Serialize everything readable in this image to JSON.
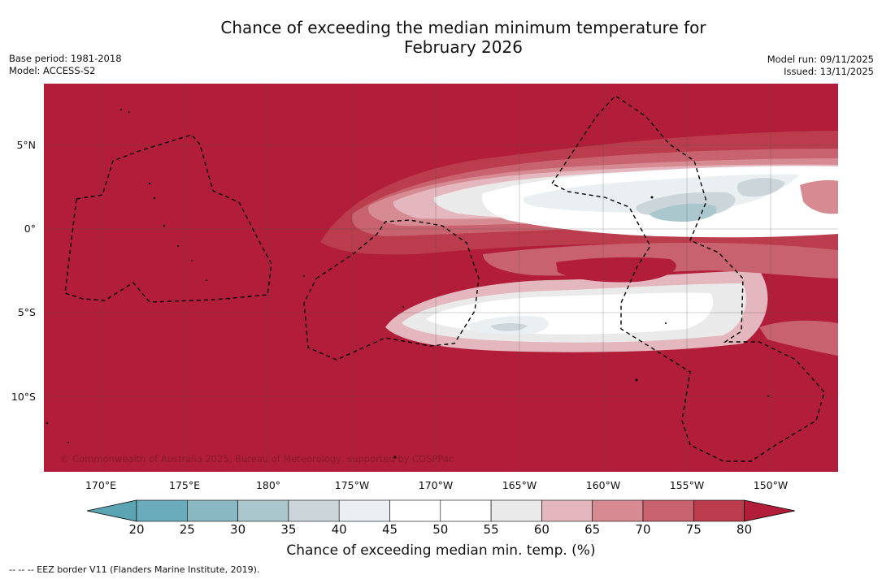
{
  "title_line1": "Chance of exceeding the median minimum temperature for",
  "title_line2": "February 2026",
  "base_period": "Base period: 1981-2018",
  "model": "Model: ACCESS-S2",
  "model_run": "Model run: 09/11/2025",
  "issued": "Issued: 13/11/2025",
  "copyright": "© Commonwealth of Australia 2025, Bureau of Meteorology, supported by COSPPac",
  "lat_labels": [
    "5°N",
    "0°",
    "5°S",
    "10°S"
  ],
  "lon_labels": [
    "170°E",
    "175°E",
    "180°",
    "175°W",
    "170°W",
    "165°W",
    "160°W",
    "155°W",
    "150°W"
  ],
  "colorbar": {
    "ticks": [
      "20",
      "25",
      "30",
      "35",
      "40",
      "45",
      "50",
      "55",
      "60",
      "65",
      "70",
      "75",
      "80"
    ],
    "label": "Chance of exceeding median min. temp. (%)",
    "colors": [
      "#5ba4b4",
      "#6aacbb",
      "#89b8c1",
      "#a9c7cc",
      "#ccd6da",
      "#eaf0f2",
      "#ffffff",
      "#ffffff",
      "#ebeaea",
      "#e3b7bd",
      "#d68b92",
      "#c8626e",
      "#bb3c4c",
      "#b21d39"
    ]
  },
  "footer": "--  --  -- EEZ border V11 (Flanders Marine Institute, 2019)."
}
